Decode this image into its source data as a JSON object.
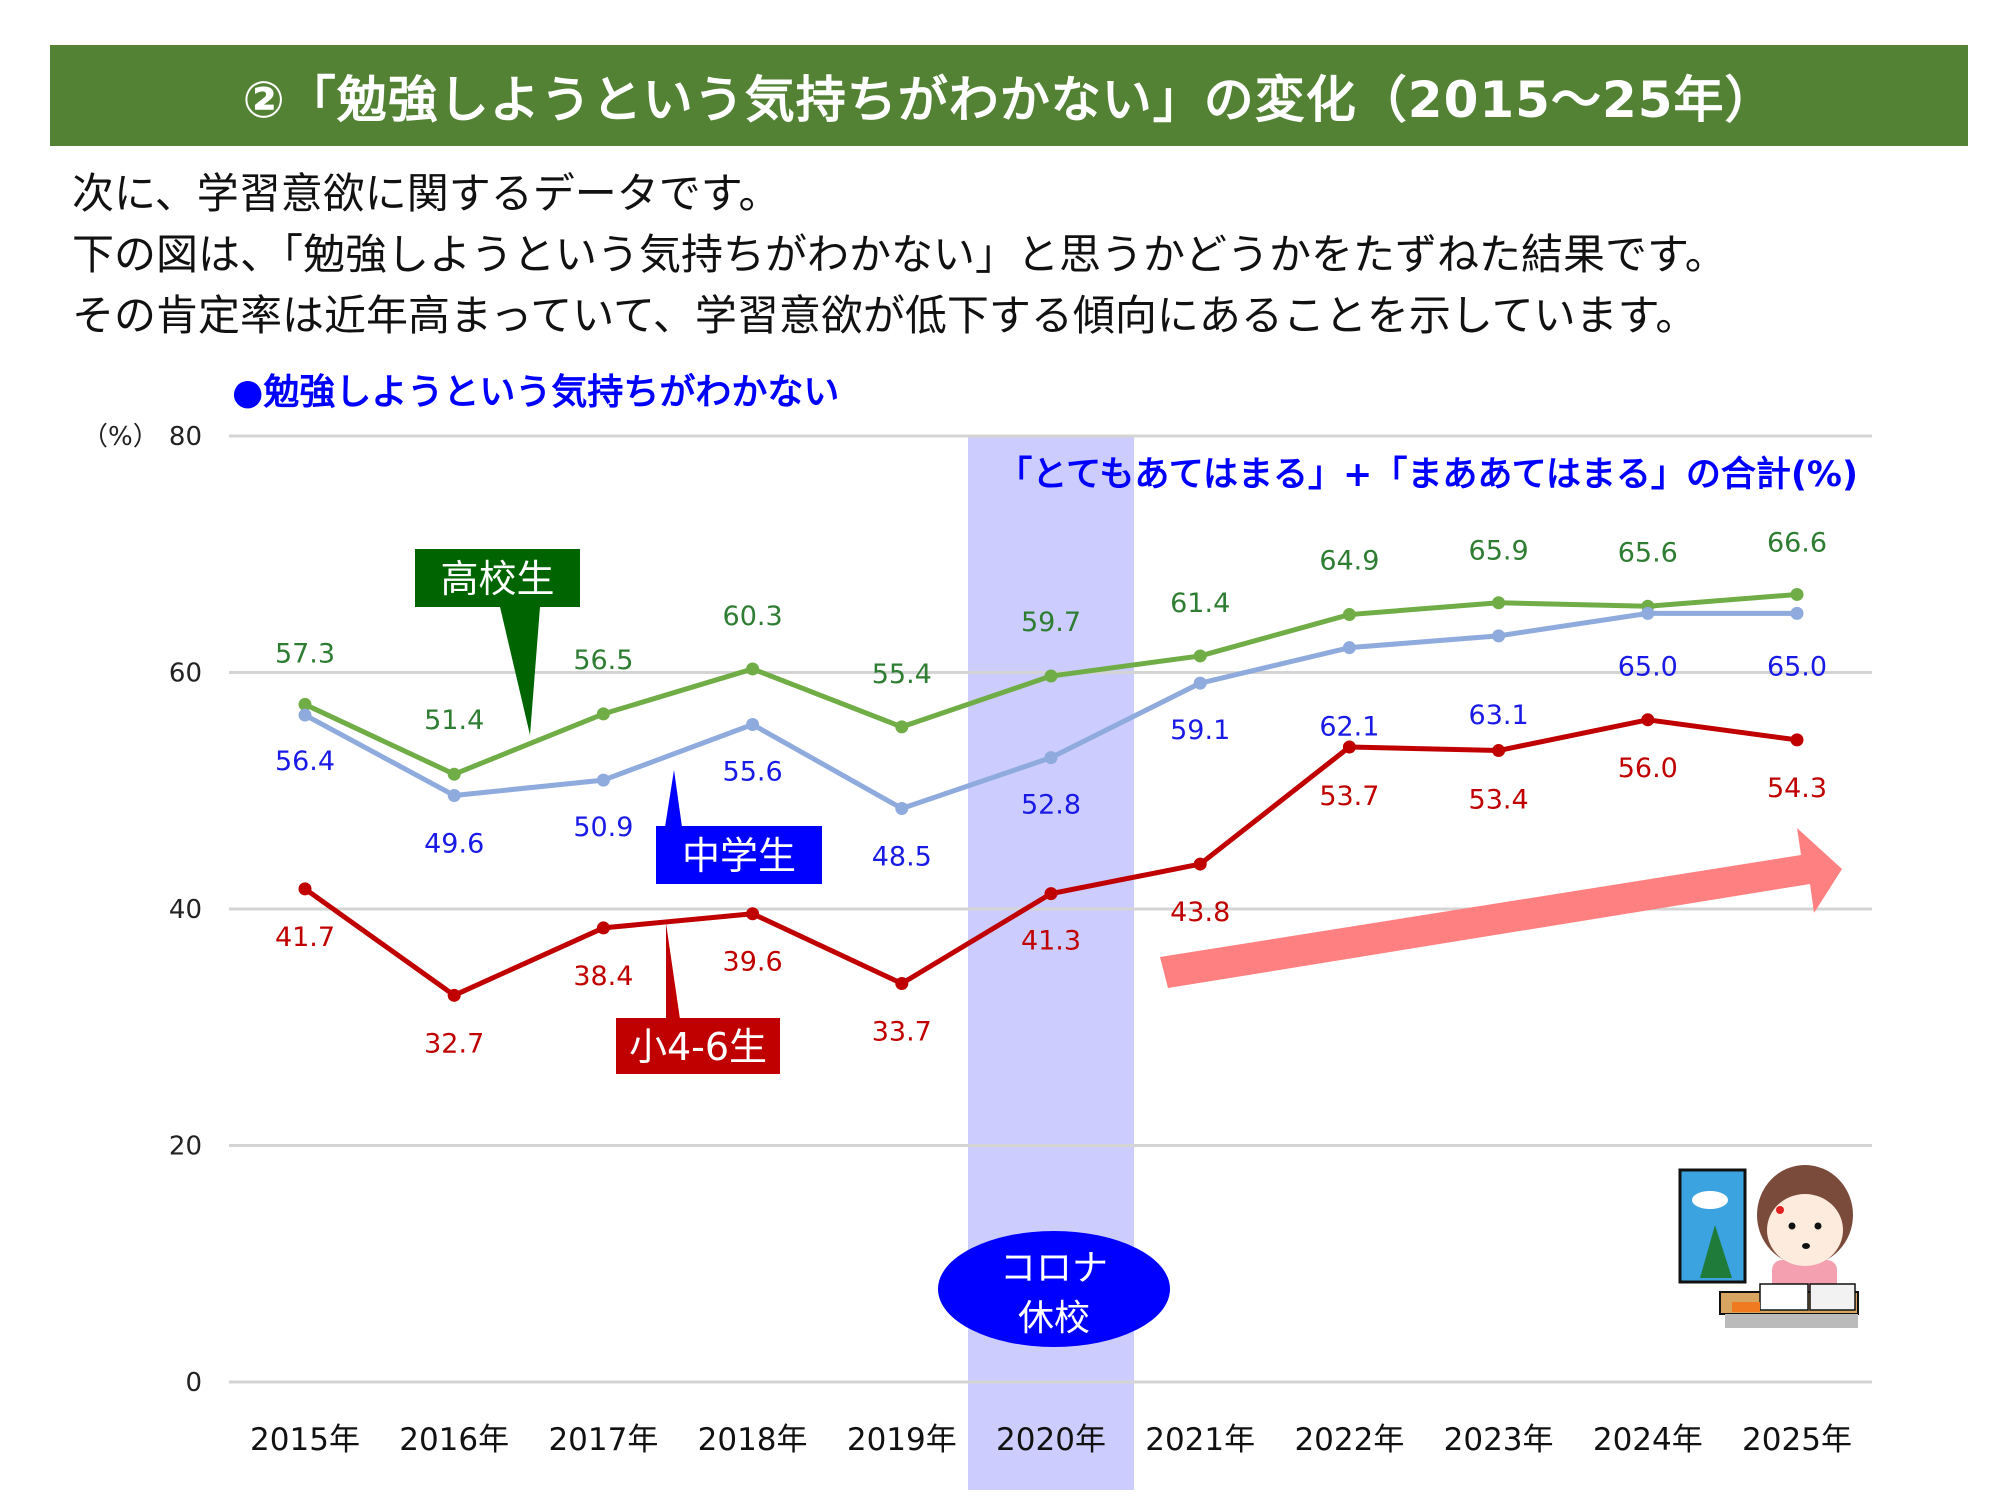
{
  "header": {
    "title": "②「勉強しようという気持ちがわかない」の変化（2015～25年）"
  },
  "intro": {
    "lines": [
      "次に、学習意欲に関するデータです。",
      "下の図は、「勉強しようという気持ちがわかない」と思うかどうかをたずねた結果です。",
      "その肯定率は近年高まっていて、学習意欲が低下する傾向にあることを示しています。"
    ]
  },
  "colors": {
    "title_bg": "#548235",
    "high_school": "#70AD47",
    "high_school_label": "#2E7D32",
    "high_school_callout": "#006400",
    "middle_school": "#8FAADC",
    "middle_school_label": "#1A1AE6",
    "middle_school_callout": "#0000FF",
    "elementary": "#C00000",
    "elementary_label": "#C00000",
    "elementary_callout": "#C00000",
    "covid_band": "#CCCCFF",
    "covid_badge": "#0000FF",
    "trend_arrow": "#FF8080",
    "subtitle": "#0000FF"
  },
  "chart_data": {
    "type": "line",
    "title": "●勉強しようという気持ちがわかない",
    "subtitle": "「とてもあてはまる」+「まああてはまる」の合計(%)",
    "ylabel": "（%）",
    "xlabel": "",
    "ylim": [
      0,
      80
    ],
    "yticks": [
      0,
      20,
      40,
      60,
      80
    ],
    "grid": true,
    "categories": [
      "2015年",
      "2016年",
      "2017年",
      "2018年",
      "2019年",
      "2020年",
      "2021年",
      "2022年",
      "2023年",
      "2024年",
      "2025年"
    ],
    "series": [
      {
        "name": "高校生",
        "key": "high_school",
        "values": [
          57.3,
          51.4,
          56.5,
          60.3,
          55.4,
          59.7,
          61.4,
          64.9,
          65.9,
          65.6,
          66.6
        ],
        "label_position": "above"
      },
      {
        "name": "中学生",
        "key": "middle_school",
        "values": [
          56.4,
          49.6,
          50.9,
          55.6,
          48.5,
          52.8,
          59.1,
          62.1,
          63.1,
          65.0,
          65.0
        ],
        "label_position": "below"
      },
      {
        "name": "小4-6生",
        "key": "elementary",
        "values": [
          41.7,
          32.7,
          38.4,
          39.6,
          33.7,
          41.3,
          43.8,
          53.7,
          53.4,
          56.0,
          54.3
        ],
        "label_position": "below"
      }
    ],
    "annotations": {
      "highlight_category": "2020年",
      "covid_badge": [
        "コロナ",
        "休校"
      ],
      "trend": "increasing"
    }
  }
}
